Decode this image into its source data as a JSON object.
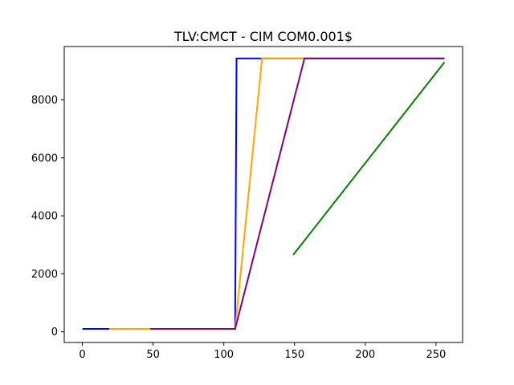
{
  "chart_data": {
    "type": "line",
    "title": "TLV:CMCT - CIM COM0.001$",
    "xlabel": "",
    "ylabel": "",
    "xlim": [
      -12.8,
      268.8
    ],
    "ylim": [
      -370,
      9840
    ],
    "xticks": [
      0,
      50,
      100,
      150,
      200,
      250
    ],
    "yticks": [
      0,
      2000,
      4000,
      6000,
      8000
    ],
    "grid": false,
    "legend": "none",
    "series": [
      {
        "color": "#0000ff",
        "x": [
          0,
          108,
          109,
          256
        ],
        "y": [
          100,
          100,
          9430,
          9430
        ]
      },
      {
        "color": "#ffa500",
        "x": [
          19,
          108,
          127,
          256
        ],
        "y": [
          100,
          100,
          9430,
          9430
        ]
      },
      {
        "color": "#800080",
        "x": [
          48,
          108,
          157,
          256
        ],
        "y": [
          100,
          100,
          9430,
          9430
        ]
      },
      {
        "color": "#008000",
        "x": [
          149,
          256
        ],
        "y": [
          2650,
          9300
        ]
      }
    ]
  }
}
